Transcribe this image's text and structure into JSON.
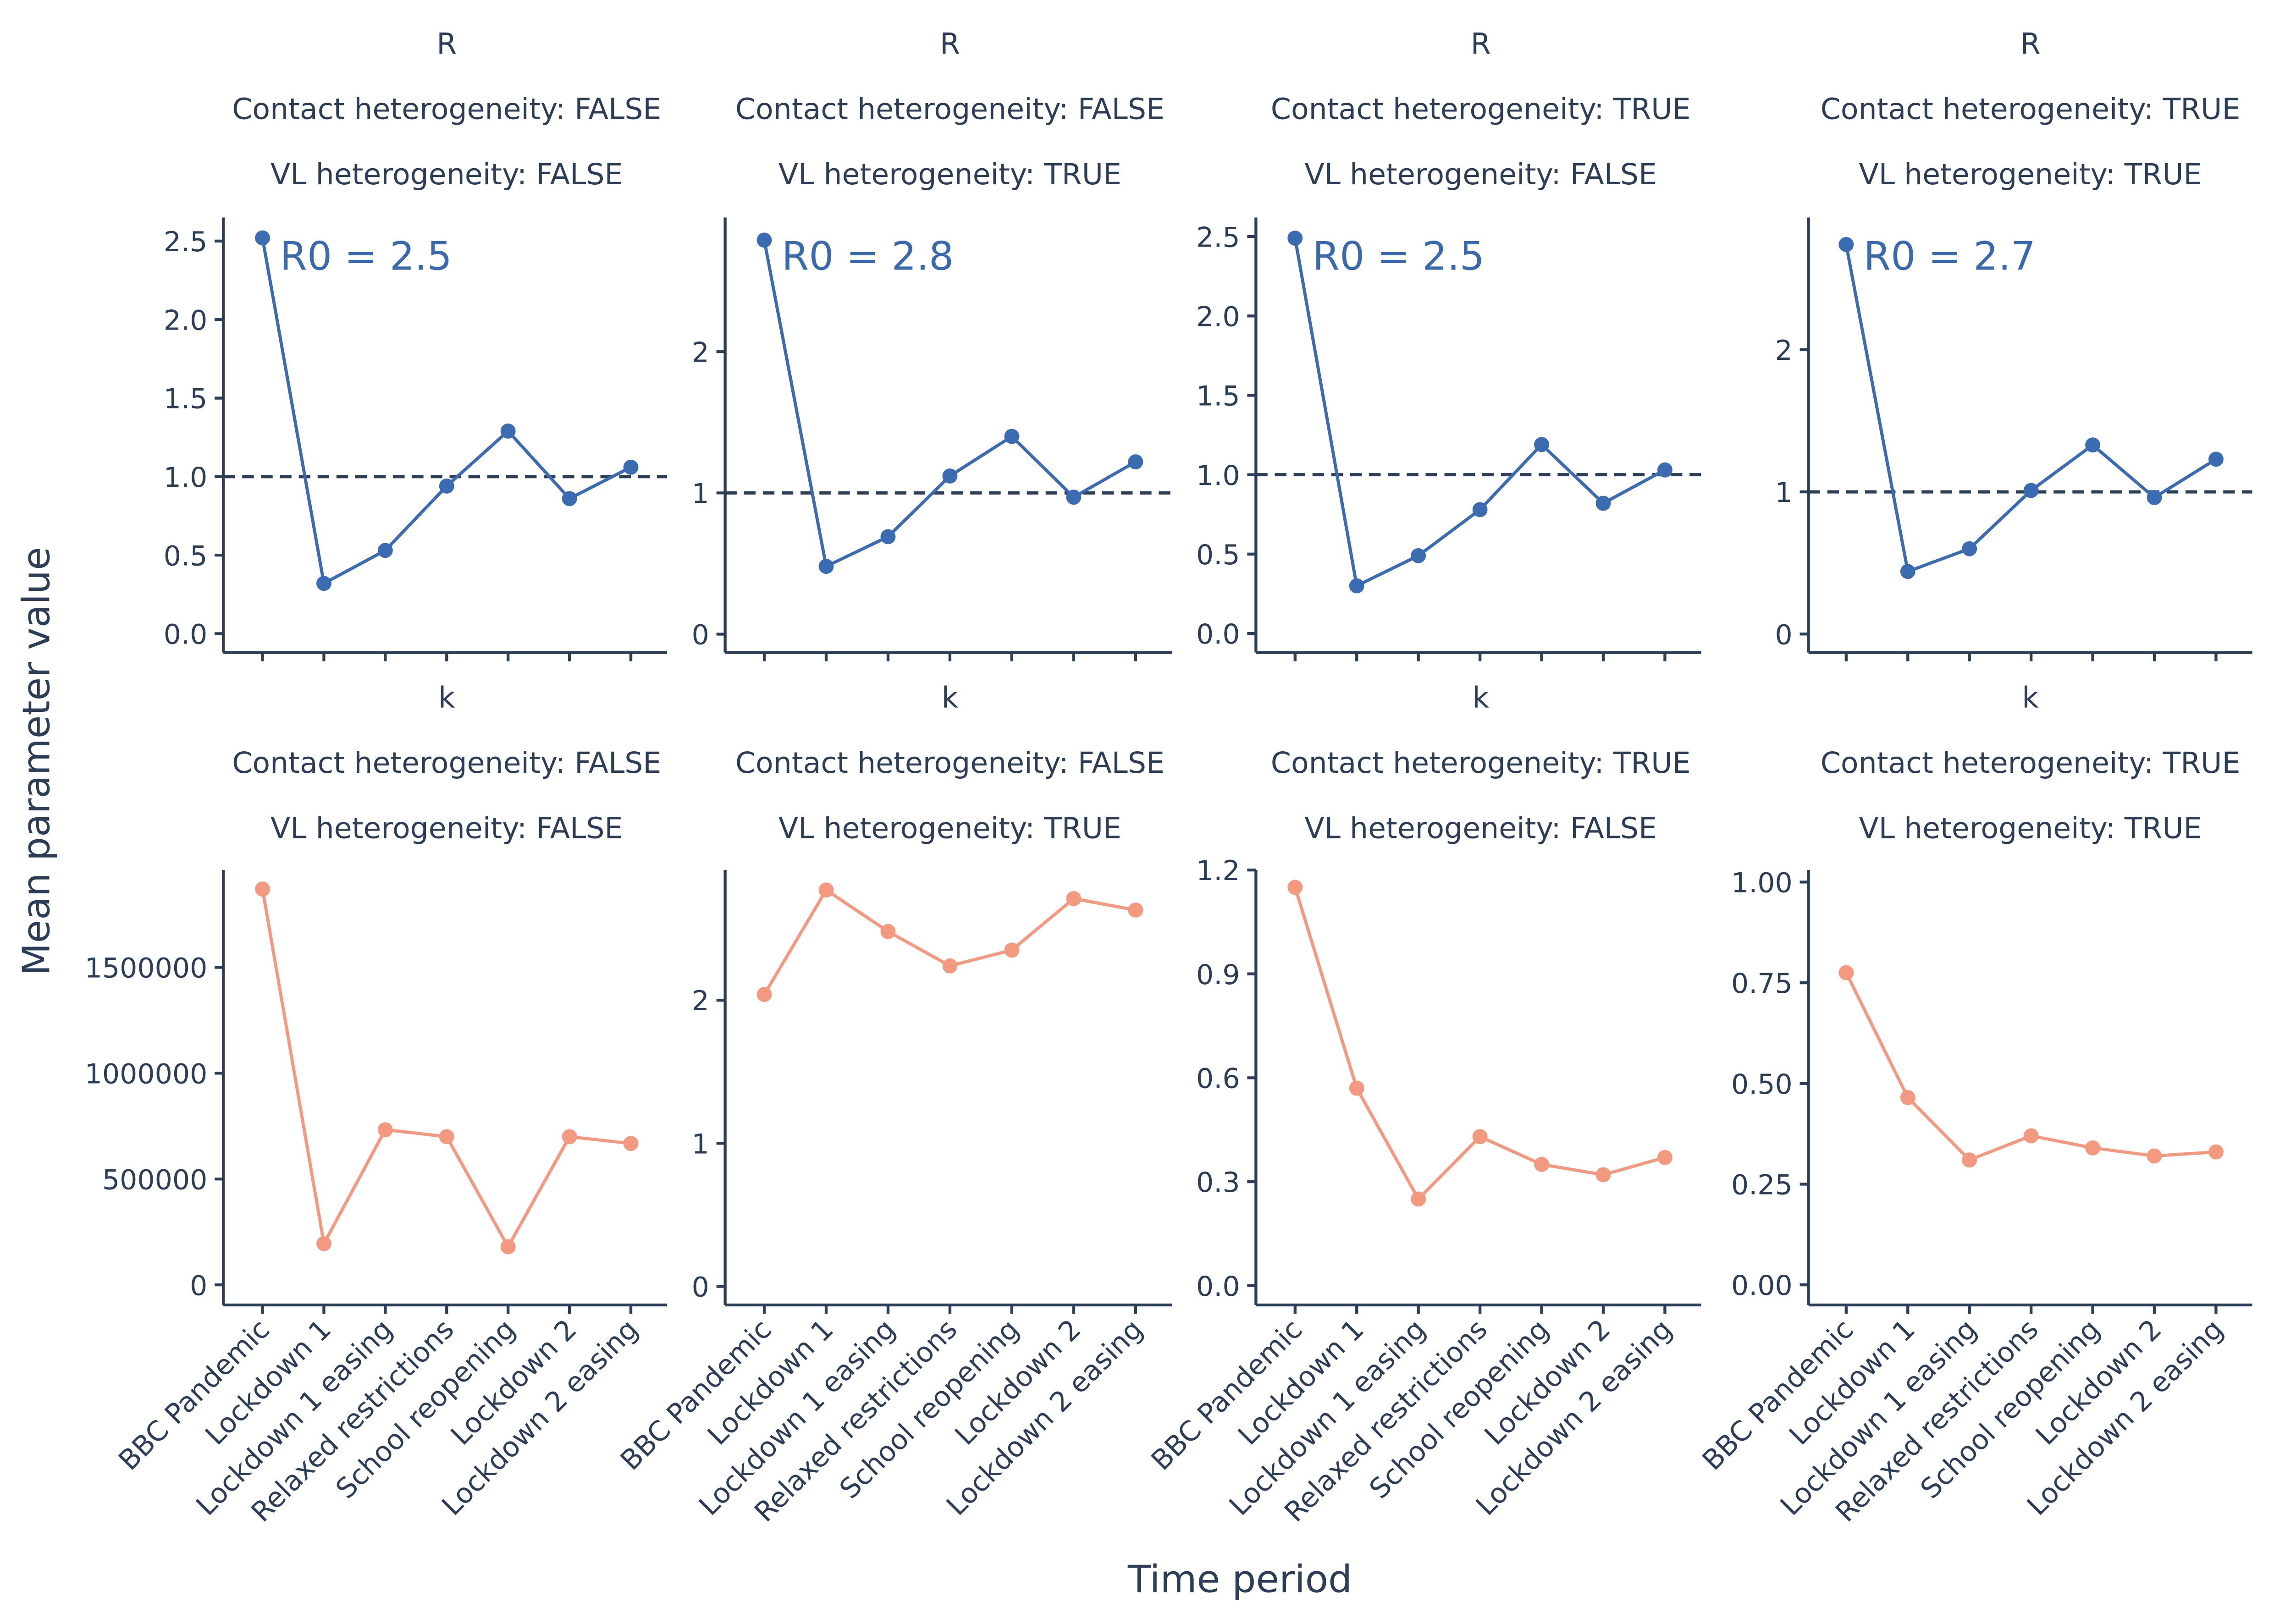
{
  "x_axis_title": "Time period",
  "y_axis_title": "Mean parameter value",
  "colors": {
    "R": "#3b6bb0",
    "k": "#f3997f",
    "text": "#2c3e57"
  },
  "chart_data": [
    {
      "type": "line",
      "parameter": "R",
      "strips": [
        "R",
        "Contact heterogeneity: FALSE",
        "VL heterogeneity: FALSE"
      ],
      "categories": [
        "BBC Pandemic",
        "Lockdown 1",
        "Lockdown 1 easing",
        "Relaxed restrictions",
        "School reopening",
        "Lockdown 2",
        "Lockdown 2 easing"
      ],
      "values": [
        2.52,
        0.32,
        0.53,
        0.94,
        1.29,
        0.86,
        1.06
      ],
      "ylim": [
        -0.12,
        2.65
      ],
      "yticks": [
        0,
        0.5,
        1,
        1.5,
        2,
        2.5
      ],
      "ytick_labels": [
        "0.0",
        "0.5",
        "1.0",
        "1.5",
        "2.0",
        "2.5"
      ],
      "reference_line": 1,
      "annotation": "R0 = 2.5"
    },
    {
      "type": "line",
      "parameter": "R",
      "strips": [
        "R",
        "Contact heterogeneity: FALSE",
        "VL heterogeneity: TRUE"
      ],
      "categories": [
        "BBC Pandemic",
        "Lockdown 1",
        "Lockdown 1 easing",
        "Relaxed restrictions",
        "School reopening",
        "Lockdown 2",
        "Lockdown 2 easing"
      ],
      "values": [
        2.79,
        0.48,
        0.69,
        1.12,
        1.4,
        0.97,
        1.22
      ],
      "ylim": [
        -0.13,
        2.95
      ],
      "yticks": [
        0,
        1,
        2
      ],
      "ytick_labels": [
        "0",
        "1",
        "2"
      ],
      "reference_line": 1,
      "annotation": "R0 = 2.8"
    },
    {
      "type": "line",
      "parameter": "R",
      "strips": [
        "R",
        "Contact heterogeneity: TRUE",
        "VL heterogeneity: FALSE"
      ],
      "categories": [
        "BBC Pandemic",
        "Lockdown 1",
        "Lockdown 1 easing",
        "Relaxed restrictions",
        "School reopening",
        "Lockdown 2",
        "Lockdown 2 easing"
      ],
      "values": [
        2.49,
        0.3,
        0.49,
        0.78,
        1.19,
        0.82,
        1.03
      ],
      "ylim": [
        -0.12,
        2.62
      ],
      "yticks": [
        0,
        0.5,
        1,
        1.5,
        2,
        2.5
      ],
      "ytick_labels": [
        "0.0",
        "0.5",
        "1.0",
        "1.5",
        "2.0",
        "2.5"
      ],
      "reference_line": 1,
      "annotation": "R0 = 2.5"
    },
    {
      "type": "line",
      "parameter": "R",
      "strips": [
        "R",
        "Contact heterogeneity: TRUE",
        "VL heterogeneity: TRUE"
      ],
      "categories": [
        "BBC Pandemic",
        "Lockdown 1",
        "Lockdown 1 easing",
        "Relaxed restrictions",
        "School reopening",
        "Lockdown 2",
        "Lockdown 2 easing"
      ],
      "values": [
        2.74,
        0.44,
        0.6,
        1.01,
        1.33,
        0.96,
        1.23
      ],
      "ylim": [
        -0.13,
        2.93
      ],
      "yticks": [
        0,
        1,
        2
      ],
      "ytick_labels": [
        "0",
        "1",
        "2"
      ],
      "reference_line": 1,
      "annotation": "R0 = 2.7"
    },
    {
      "type": "line",
      "parameter": "k",
      "strips": [
        "k",
        "Contact heterogeneity: FALSE",
        "VL heterogeneity: FALSE"
      ],
      "categories": [
        "BBC Pandemic",
        "Lockdown 1",
        "Lockdown 1 easing",
        "Relaxed restrictions",
        "School reopening",
        "Lockdown 2",
        "Lockdown 2 easing"
      ],
      "values": [
        1870000,
        195000,
        733000,
        700000,
        180000,
        700000,
        668000
      ],
      "ylim": [
        -95000,
        1960000
      ],
      "yticks": [
        0,
        500000,
        1000000,
        1500000
      ],
      "ytick_labels": [
        "0",
        "500000",
        "1000000",
        "1500000"
      ]
    },
    {
      "type": "line",
      "parameter": "k",
      "strips": [
        "k",
        "Contact heterogeneity: FALSE",
        "VL heterogeneity: TRUE"
      ],
      "categories": [
        "BBC Pandemic",
        "Lockdown 1",
        "Lockdown 1 easing",
        "Relaxed restrictions",
        "School reopening",
        "Lockdown 2",
        "Lockdown 2 easing"
      ],
      "values": [
        2.04,
        2.77,
        2.48,
        2.24,
        2.35,
        2.71,
        2.63
      ],
      "ylim": [
        -0.13,
        2.91
      ],
      "yticks": [
        0,
        1,
        2
      ],
      "ytick_labels": [
        "0",
        "1",
        "2"
      ]
    },
    {
      "type": "line",
      "parameter": "k",
      "strips": [
        "k",
        "Contact heterogeneity: TRUE",
        "VL heterogeneity: FALSE"
      ],
      "categories": [
        "BBC Pandemic",
        "Lockdown 1",
        "Lockdown 1 easing",
        "Relaxed restrictions",
        "School reopening",
        "Lockdown 2",
        "Lockdown 2 easing"
      ],
      "values": [
        1.15,
        0.57,
        0.25,
        0.43,
        0.35,
        0.32,
        0.37
      ],
      "ylim": [
        -0.056,
        1.2
      ],
      "yticks": [
        0,
        0.3,
        0.6,
        0.9,
        1.2
      ],
      "ytick_labels": [
        "0.0",
        "0.3",
        "0.6",
        "0.9",
        "1.2"
      ]
    },
    {
      "type": "line",
      "parameter": "k",
      "strips": [
        "k",
        "Contact heterogeneity: TRUE",
        "VL heterogeneity: TRUE"
      ],
      "categories": [
        "BBC Pandemic",
        "Lockdown 1",
        "Lockdown 1 easing",
        "Relaxed restrictions",
        "School reopening",
        "Lockdown 2",
        "Lockdown 2 easing"
      ],
      "values": [
        0.775,
        0.465,
        0.31,
        0.37,
        0.34,
        0.32,
        0.33
      ],
      "ylim": [
        -0.05,
        1.03
      ],
      "yticks": [
        0,
        0.25,
        0.5,
        0.75,
        1
      ],
      "ytick_labels": [
        "0.00",
        "0.25",
        "0.50",
        "0.75",
        "1.00"
      ]
    }
  ]
}
